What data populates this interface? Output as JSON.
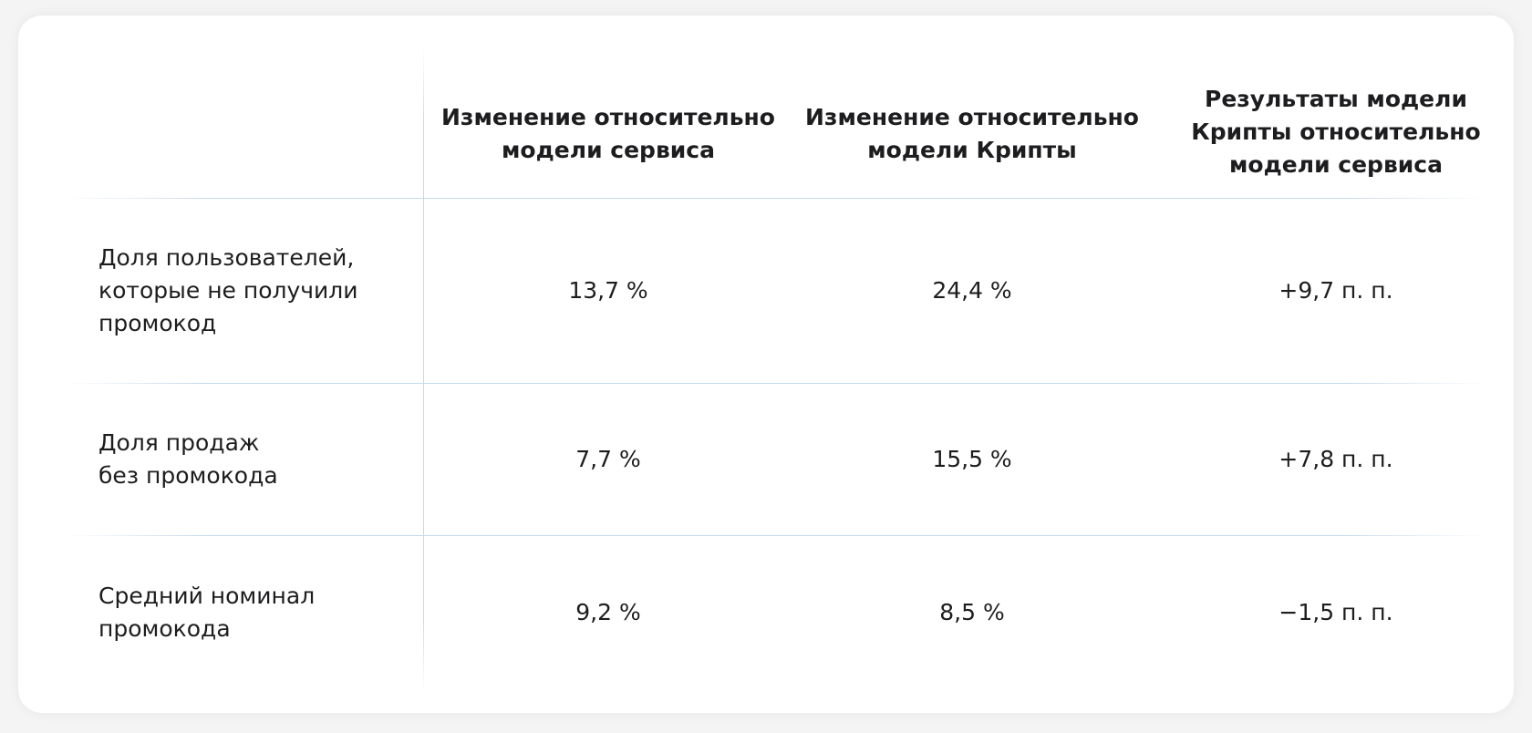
{
  "table": {
    "headers": [
      "",
      "Изменение относительно\nмодели сервиса",
      "Изменение относительно\nмодели Крипты",
      "Результаты модели\nКрипты относительно\nмодели сервиса"
    ],
    "rows": [
      {
        "label": "Доля пользователей,\nкоторые не получили\nпромокод",
        "values": [
          "13,7 %",
          "24,4 %",
          "+9,7 п. п."
        ]
      },
      {
        "label": "Доля продаж\nбез промокода",
        "values": [
          "7,7 %",
          "15,5 %",
          "+7,8 п. п."
        ]
      },
      {
        "label": "Средний номинал\nпромокода",
        "values": [
          "9,2 %",
          "8,5 %",
          "−1,5 п. п."
        ]
      }
    ]
  },
  "colors": {
    "divider": "#c6d9ee",
    "background": "#f4f4f5",
    "card": "#ffffff",
    "text": "#1d1d1f"
  }
}
